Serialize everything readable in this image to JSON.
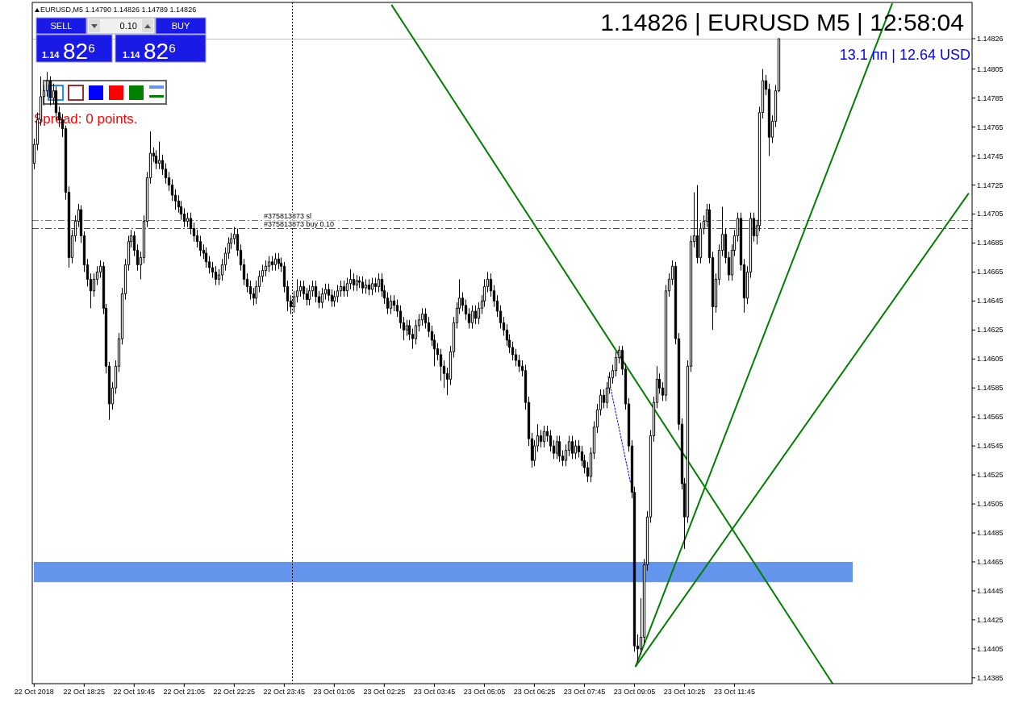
{
  "chart_data": {
    "type": "candlestick",
    "title": "1.14826 | EURUSD M5 | 12:58:04",
    "subtitle": "13.1 пп | 12.64 USD",
    "annotations": [
      "EURUSD,M5  1.14790 1.14826 1.14789 1.14826",
      "Spread: 0 points.",
      "SELL",
      "0.10",
      "BUY",
      "1.14 82$^{6}$",
      "1.14 82$^{6}$"
    ],
    "xlim": [
      "2018-10-22T17:02",
      "2018-10-23T18:05"
    ],
    "xticks": [
      {
        "value": "2018-10-22T17:05",
        "label": "22 Oct 2018"
      },
      {
        "value": "2018-10-22T18:25",
        "label": "22 Oct 18:25"
      },
      {
        "value": "2018-10-22T19:45",
        "label": "22 Oct 19:45"
      },
      {
        "value": "2018-10-22T21:05",
        "label": "22 Oct 21:05"
      },
      {
        "value": "2018-10-22T22:25",
        "label": "22 Oct 22:25"
      },
      {
        "value": "2018-10-22T23:45",
        "label": "22 Oct 23:45"
      },
      {
        "value": "2018-10-23T01:05",
        "label": "23 Oct 01:05"
      },
      {
        "value": "2018-10-23T02:25",
        "label": "23 Oct 02:25"
      },
      {
        "value": "2018-10-23T03:45",
        "label": "23 Oct 03:45"
      },
      {
        "value": "2018-10-23T05:05",
        "label": "23 Oct 05:05"
      },
      {
        "value": "2018-10-23T06:25",
        "label": "23 Oct 06:25"
      },
      {
        "value": "2018-10-23T07:45",
        "label": "23 Oct 07:45"
      },
      {
        "value": "2018-10-23T09:05",
        "label": "23 Oct 09:05"
      },
      {
        "value": "2018-10-23T10:25",
        "label": "23 Oct 10:25"
      },
      {
        "value": "2018-10-23T11:45",
        "label": "23 Oct 11:45"
      }
    ],
    "ylim": [
      1.14381,
      1.14851
    ],
    "yticks": [
      1.14385,
      1.14405,
      1.14425,
      1.14445,
      1.14465,
      1.14485,
      1.14505,
      1.14525,
      1.14545,
      1.14565,
      1.14585,
      1.14605,
      1.14625,
      1.14645,
      1.14665,
      1.14685,
      1.14705,
      1.14725,
      1.14745,
      1.14765,
      1.14785,
      1.14805,
      1.14826
    ],
    "grid": false,
    "ref_lines": [
      {
        "axis": "y",
        "value": 1.14701,
        "label": "#375813873 sl",
        "color": "#ff4500",
        "line_style": "dashed"
      },
      {
        "axis": "y",
        "value": 1.14695,
        "label": "#375813873 buy 0.10",
        "color": "#008000",
        "line_style": "dashed"
      },
      {
        "axis": "y",
        "value": 1.14826,
        "color": "#c0c0c0",
        "line_style": "solid"
      },
      {
        "axis": "x",
        "value": "2018-10-22T23:58",
        "color": "#000000",
        "line_style": "dotted"
      }
    ],
    "bands": [
      {
        "axis": "y",
        "from": 1.14451,
        "to": 1.14465,
        "color": "#6495ed"
      }
    ],
    "series": [
      {
        "x": [
          "2018-10-22T17:05",
          "2018-10-22T17:10",
          "2018-10-22T17:15",
          "2018-10-22T17:20",
          "2018-10-22T17:25",
          "2018-10-22T17:30",
          "2018-10-22T17:35",
          "2018-10-22T17:40",
          "2018-10-22T17:45",
          "2018-10-22T17:50",
          "2018-10-22T17:55",
          "2018-10-22T18:00",
          "2018-10-22T18:05",
          "2018-10-22T18:10",
          "2018-10-22T18:15",
          "2018-10-22T18:20",
          "2018-10-22T18:25",
          "2018-10-22T18:30",
          "2018-10-22T18:35",
          "2018-10-22T18:40",
          "2018-10-22T18:45",
          "2018-10-22T18:50",
          "2018-10-22T18:55",
          "2018-10-22T19:00",
          "2018-10-22T19:05",
          "2018-10-22T19:10",
          "2018-10-22T19:15",
          "2018-10-22T19:20",
          "2018-10-22T19:25",
          "2018-10-22T19:30",
          "2018-10-22T19:35",
          "2018-10-22T19:40",
          "2018-10-22T19:45",
          "2018-10-22T19:50",
          "2018-10-22T19:55",
          "2018-10-22T20:00",
          "2018-10-22T20:05",
          "2018-10-22T20:10",
          "2018-10-22T20:15",
          "2018-10-22T20:20",
          "2018-10-22T20:25",
          "2018-10-22T20:30",
          "2018-10-22T20:35",
          "2018-10-22T20:40",
          "2018-10-22T20:45",
          "2018-10-22T20:50",
          "2018-10-22T20:55",
          "2018-10-22T21:00",
          "2018-10-22T21:05",
          "2018-10-22T21:10",
          "2018-10-22T21:15",
          "2018-10-22T21:20",
          "2018-10-22T21:25",
          "2018-10-22T21:30",
          "2018-10-22T21:35",
          "2018-10-22T21:40",
          "2018-10-22T21:45",
          "2018-10-22T21:50",
          "2018-10-22T21:55",
          "2018-10-22T22:00",
          "2018-10-22T22:05",
          "2018-10-22T22:10",
          "2018-10-22T22:15",
          "2018-10-22T22:20",
          "2018-10-22T22:25",
          "2018-10-22T22:30",
          "2018-10-22T22:35",
          "2018-10-22T22:40",
          "2018-10-22T22:45",
          "2018-10-22T22:50",
          "2018-10-22T22:55",
          "2018-10-22T23:00",
          "2018-10-22T23:05",
          "2018-10-22T23:10",
          "2018-10-22T23:15",
          "2018-10-22T23:20",
          "2018-10-22T23:25",
          "2018-10-22T23:30",
          "2018-10-22T23:35",
          "2018-10-22T23:40",
          "2018-10-22T23:45",
          "2018-10-22T23:50",
          "2018-10-22T23:55",
          "2018-10-23T00:00",
          "2018-10-23T00:05",
          "2018-10-23T00:10",
          "2018-10-23T00:15",
          "2018-10-23T00:20",
          "2018-10-23T00:25",
          "2018-10-23T00:30",
          "2018-10-23T00:35",
          "2018-10-23T00:40",
          "2018-10-23T00:45",
          "2018-10-23T00:50",
          "2018-10-23T00:55",
          "2018-10-23T01:00",
          "2018-10-23T01:05",
          "2018-10-23T01:10",
          "2018-10-23T01:15",
          "2018-10-23T01:20",
          "2018-10-23T01:25",
          "2018-10-23T01:30",
          "2018-10-23T01:35",
          "2018-10-23T01:40",
          "2018-10-23T01:45",
          "2018-10-23T01:50",
          "2018-10-23T01:55",
          "2018-10-23T02:00",
          "2018-10-23T02:05",
          "2018-10-23T02:10",
          "2018-10-23T02:15",
          "2018-10-23T02:20",
          "2018-10-23T02:25",
          "2018-10-23T02:30",
          "2018-10-23T02:35",
          "2018-10-23T02:40",
          "2018-10-23T02:45",
          "2018-10-23T02:50",
          "2018-10-23T02:55",
          "2018-10-23T03:00",
          "2018-10-23T03:05",
          "2018-10-23T03:10",
          "2018-10-23T03:15",
          "2018-10-23T03:20",
          "2018-10-23T03:25",
          "2018-10-23T03:30",
          "2018-10-23T03:35",
          "2018-10-23T03:40",
          "2018-10-23T03:45",
          "2018-10-23T03:50",
          "2018-10-23T03:55",
          "2018-10-23T04:00",
          "2018-10-23T04:05",
          "2018-10-23T04:10",
          "2018-10-23T04:15",
          "2018-10-23T04:20",
          "2018-10-23T04:25",
          "2018-10-23T04:30",
          "2018-10-23T04:35",
          "2018-10-23T04:40",
          "2018-10-23T04:45",
          "2018-10-23T04:50",
          "2018-10-23T04:55",
          "2018-10-23T05:00",
          "2018-10-23T05:05",
          "2018-10-23T05:10",
          "2018-10-23T05:15",
          "2018-10-23T05:20",
          "2018-10-23T05:25",
          "2018-10-23T05:30",
          "2018-10-23T05:35",
          "2018-10-23T05:40",
          "2018-10-23T05:45",
          "2018-10-23T05:50",
          "2018-10-23T05:55",
          "2018-10-23T06:00",
          "2018-10-23T06:05",
          "2018-10-23T06:10",
          "2018-10-23T06:15",
          "2018-10-23T06:20",
          "2018-10-23T06:25",
          "2018-10-23T06:30",
          "2018-10-23T06:35",
          "2018-10-23T06:40",
          "2018-10-23T06:45",
          "2018-10-23T06:50",
          "2018-10-23T06:55",
          "2018-10-23T07:00",
          "2018-10-23T07:05",
          "2018-10-23T07:10",
          "2018-10-23T07:15",
          "2018-10-23T07:20",
          "2018-10-23T07:25",
          "2018-10-23T07:30",
          "2018-10-23T07:35",
          "2018-10-23T07:40",
          "2018-10-23T07:45",
          "2018-10-23T07:50",
          "2018-10-23T07:55",
          "2018-10-23T08:00",
          "2018-10-23T08:05",
          "2018-10-23T08:10",
          "2018-10-23T08:15",
          "2018-10-23T08:20",
          "2018-10-23T08:25",
          "2018-10-23T08:30",
          "2018-10-23T08:35",
          "2018-10-23T08:40",
          "2018-10-23T08:45",
          "2018-10-23T08:50",
          "2018-10-23T08:55",
          "2018-10-23T09:00",
          "2018-10-23T09:05",
          "2018-10-23T09:10",
          "2018-10-23T09:15",
          "2018-10-23T09:20",
          "2018-10-23T09:25",
          "2018-10-23T09:30",
          "2018-10-23T09:35",
          "2018-10-23T09:40",
          "2018-10-23T09:45",
          "2018-10-23T09:50",
          "2018-10-23T09:55",
          "2018-10-23T10:00",
          "2018-10-23T10:05",
          "2018-10-23T10:10",
          "2018-10-23T10:15",
          "2018-10-23T10:20",
          "2018-10-23T10:25",
          "2018-10-23T10:30",
          "2018-10-23T10:35",
          "2018-10-23T10:40",
          "2018-10-23T10:45",
          "2018-10-23T10:50",
          "2018-10-23T10:55",
          "2018-10-23T11:00",
          "2018-10-23T11:05",
          "2018-10-23T11:10",
          "2018-10-23T11:15",
          "2018-10-23T11:20",
          "2018-10-23T11:25",
          "2018-10-23T11:30",
          "2018-10-23T11:35",
          "2018-10-23T11:40",
          "2018-10-23T11:45",
          "2018-10-23T11:50",
          "2018-10-23T11:55",
          "2018-10-23T12:00",
          "2018-10-23T12:05",
          "2018-10-23T12:10",
          "2018-10-23T12:15",
          "2018-10-23T12:20",
          "2018-10-23T12:25",
          "2018-10-23T12:30",
          "2018-10-23T12:35",
          "2018-10-23T12:40",
          "2018-10-23T12:45",
          "2018-10-23T12:50",
          "2018-10-23T12:55"
        ],
        "ohlc": [
          [
            1.1474,
            1.14757,
            1.14736,
            1.14753
          ],
          [
            1.14753,
            1.14775,
            1.14749,
            1.1477
          ],
          [
            1.1477,
            1.148,
            1.14766,
            1.14786
          ],
          [
            1.14786,
            1.14794,
            1.1478,
            1.1479
          ],
          [
            1.1479,
            1.14803,
            1.14786,
            1.14797
          ],
          [
            1.14797,
            1.148,
            1.1478,
            1.14785
          ],
          [
            1.14785,
            1.14795,
            1.14781,
            1.1479
          ],
          [
            1.1479,
            1.14793,
            1.1477,
            1.14775
          ],
          [
            1.14775,
            1.14779,
            1.14765,
            1.1477
          ],
          [
            1.1477,
            1.14774,
            1.14758,
            1.14764
          ],
          [
            1.14764,
            1.14766,
            1.14715,
            1.1472
          ],
          [
            1.1472,
            1.14724,
            1.14668,
            1.14675
          ],
          [
            1.14675,
            1.14694,
            1.14671,
            1.1469
          ],
          [
            1.1469,
            1.14704,
            1.14686,
            1.147
          ],
          [
            1.147,
            1.14712,
            1.14696,
            1.14708
          ],
          [
            1.14708,
            1.14711,
            1.14685,
            1.1469
          ],
          [
            1.1469,
            1.14693,
            1.14665,
            1.1467
          ],
          [
            1.1467,
            1.14674,
            1.14655,
            1.1466
          ],
          [
            1.1466,
            1.14664,
            1.1464,
            1.14652
          ],
          [
            1.14652,
            1.14664,
            1.14648,
            1.1466
          ],
          [
            1.1466,
            1.14669,
            1.14656,
            1.14665
          ],
          [
            1.14665,
            1.14673,
            1.14661,
            1.14669
          ],
          [
            1.14669,
            1.14672,
            1.14636,
            1.1464
          ],
          [
            1.1464,
            1.14643,
            1.14595,
            1.146
          ],
          [
            1.146,
            1.14603,
            1.14563,
            1.14574
          ],
          [
            1.14574,
            1.14589,
            1.1457,
            1.14585
          ],
          [
            1.14585,
            1.14604,
            1.14581,
            1.146
          ],
          [
            1.146,
            1.14623,
            1.14596,
            1.14619
          ],
          [
            1.14619,
            1.14654,
            1.14615,
            1.1465
          ],
          [
            1.1465,
            1.14674,
            1.14646,
            1.1467
          ],
          [
            1.1467,
            1.1469,
            1.14666,
            1.14686
          ],
          [
            1.14686,
            1.14694,
            1.14682,
            1.1469
          ],
          [
            1.1469,
            1.14693,
            1.14676,
            1.1468
          ],
          [
            1.1468,
            1.14684,
            1.14666,
            1.1467
          ],
          [
            1.1467,
            1.14679,
            1.1466,
            1.14675
          ],
          [
            1.14675,
            1.14704,
            1.14671,
            1.147
          ],
          [
            1.147,
            1.14734,
            1.14696,
            1.1473
          ],
          [
            1.1473,
            1.14762,
            1.14726,
            1.14747
          ],
          [
            1.14747,
            1.14751,
            1.14741,
            1.14745
          ],
          [
            1.14745,
            1.14749,
            1.14736,
            1.1474
          ],
          [
            1.1474,
            1.14755,
            1.14736,
            1.14742
          ],
          [
            1.14742,
            1.14746,
            1.14732,
            1.14736
          ],
          [
            1.14736,
            1.1474,
            1.14726,
            1.1473
          ],
          [
            1.1473,
            1.14734,
            1.14721,
            1.14725
          ],
          [
            1.14725,
            1.14729,
            1.14714,
            1.14718
          ],
          [
            1.14718,
            1.14722,
            1.14708,
            1.14714
          ],
          [
            1.14714,
            1.14718,
            1.14706,
            1.1471
          ],
          [
            1.1471,
            1.14714,
            1.14701,
            1.14705
          ],
          [
            1.14705,
            1.14709,
            1.14696,
            1.147
          ],
          [
            1.147,
            1.14706,
            1.14696,
            1.14702
          ],
          [
            1.14702,
            1.14706,
            1.14691,
            1.14695
          ],
          [
            1.14695,
            1.14699,
            1.14686,
            1.1469
          ],
          [
            1.1469,
            1.14694,
            1.14682,
            1.14686
          ],
          [
            1.14686,
            1.1469,
            1.14676,
            1.1468
          ],
          [
            1.1468,
            1.14684,
            1.14674,
            1.14678
          ],
          [
            1.14678,
            1.14682,
            1.14668,
            1.14672
          ],
          [
            1.14672,
            1.14676,
            1.14664,
            1.14668
          ],
          [
            1.14668,
            1.14672,
            1.14661,
            1.14665
          ],
          [
            1.14665,
            1.14669,
            1.14656,
            1.1466
          ],
          [
            1.1466,
            1.14667,
            1.14656,
            1.14663
          ],
          [
            1.14663,
            1.14674,
            1.14659,
            1.1467
          ],
          [
            1.1467,
            1.14682,
            1.14666,
            1.14678
          ],
          [
            1.14678,
            1.14689,
            1.14674,
            1.14685
          ],
          [
            1.14685,
            1.14692,
            1.14681,
            1.14688
          ],
          [
            1.14688,
            1.14696,
            1.14684,
            1.14691
          ],
          [
            1.14691,
            1.14695,
            1.14676,
            1.1468
          ],
          [
            1.1468,
            1.14684,
            1.14666,
            1.1467
          ],
          [
            1.1467,
            1.14674,
            1.14656,
            1.1466
          ],
          [
            1.1466,
            1.14664,
            1.14651,
            1.14655
          ],
          [
            1.14655,
            1.14659,
            1.14646,
            1.1465
          ],
          [
            1.1465,
            1.14654,
            1.14642,
            1.14647
          ],
          [
            1.14647,
            1.14659,
            1.14643,
            1.14655
          ],
          [
            1.14655,
            1.14666,
            1.14651,
            1.14662
          ],
          [
            1.14662,
            1.1467,
            1.14658,
            1.14666
          ],
          [
            1.14666,
            1.14673,
            1.14662,
            1.14669
          ],
          [
            1.14669,
            1.14676,
            1.14665,
            1.14672
          ],
          [
            1.14672,
            1.14676,
            1.14666,
            1.1467
          ],
          [
            1.1467,
            1.14678,
            1.14666,
            1.14674
          ],
          [
            1.14674,
            1.14678,
            1.14667,
            1.14671
          ],
          [
            1.14671,
            1.14675,
            1.14665,
            1.14669
          ],
          [
            1.14669,
            1.14672,
            1.14651,
            1.14655
          ],
          [
            1.14655,
            1.14659,
            1.14638,
            1.14645
          ],
          [
            1.14645,
            1.14649,
            1.14636,
            1.14641
          ],
          [
            1.14641,
            1.14652,
            1.14637,
            1.14648
          ],
          [
            1.14648,
            1.1466,
            1.14644,
            1.14652
          ],
          [
            1.14652,
            1.14659,
            1.14648,
            1.14655
          ],
          [
            1.14655,
            1.14659,
            1.14646,
            1.1465
          ],
          [
            1.1465,
            1.14654,
            1.14642,
            1.14646
          ],
          [
            1.14646,
            1.14656,
            1.14642,
            1.14652
          ],
          [
            1.14652,
            1.14659,
            1.14648,
            1.14655
          ],
          [
            1.14655,
            1.14659,
            1.14644,
            1.14648
          ],
          [
            1.14648,
            1.14652,
            1.1464,
            1.14644
          ],
          [
            1.14644,
            1.14654,
            1.1464,
            1.1465
          ],
          [
            1.1465,
            1.14657,
            1.14646,
            1.14653
          ],
          [
            1.14653,
            1.14657,
            1.14645,
            1.14649
          ],
          [
            1.14649,
            1.14653,
            1.14641,
            1.14645
          ],
          [
            1.14645,
            1.14652,
            1.14641,
            1.14648
          ],
          [
            1.14648,
            1.14656,
            1.14644,
            1.14652
          ],
          [
            1.14652,
            1.14659,
            1.14648,
            1.14655
          ],
          [
            1.14655,
            1.14659,
            1.14648,
            1.14652
          ],
          [
            1.14652,
            1.14661,
            1.14648,
            1.14657
          ],
          [
            1.14657,
            1.14667,
            1.14653,
            1.1466
          ],
          [
            1.1466,
            1.14664,
            1.14652,
            1.14656
          ],
          [
            1.14656,
            1.14663,
            1.14652,
            1.14659
          ],
          [
            1.14659,
            1.14662,
            1.14654,
            1.14658
          ],
          [
            1.14658,
            1.14662,
            1.1465,
            1.14654
          ],
          [
            1.14654,
            1.1466,
            1.1465,
            1.14656
          ],
          [
            1.14656,
            1.1466,
            1.14649,
            1.14653
          ],
          [
            1.14653,
            1.14661,
            1.14649,
            1.14657
          ],
          [
            1.14657,
            1.14661,
            1.14651,
            1.14655
          ],
          [
            1.14655,
            1.14664,
            1.14651,
            1.1466
          ],
          [
            1.1466,
            1.14664,
            1.14648,
            1.14652
          ],
          [
            1.14652,
            1.14656,
            1.14643,
            1.14647
          ],
          [
            1.14647,
            1.14651,
            1.14636,
            1.1464
          ],
          [
            1.1464,
            1.14649,
            1.14636,
            1.14645
          ],
          [
            1.14645,
            1.14649,
            1.14638,
            1.14642
          ],
          [
            1.14642,
            1.14646,
            1.14634,
            1.14638
          ],
          [
            1.14638,
            1.14642,
            1.14626,
            1.1463
          ],
          [
            1.1463,
            1.14634,
            1.14618,
            1.14625
          ],
          [
            1.14625,
            1.14632,
            1.14621,
            1.14628
          ],
          [
            1.14628,
            1.14632,
            1.14618,
            1.14622
          ],
          [
            1.14622,
            1.14626,
            1.14612,
            1.14619
          ],
          [
            1.14619,
            1.14632,
            1.14615,
            1.14628
          ],
          [
            1.14628,
            1.14636,
            1.14624,
            1.14632
          ],
          [
            1.14632,
            1.1464,
            1.14628,
            1.14636
          ],
          [
            1.14636,
            1.1464,
            1.14626,
            1.1463
          ],
          [
            1.1463,
            1.14634,
            1.1462,
            1.14624
          ],
          [
            1.14624,
            1.14628,
            1.14614,
            1.14618
          ],
          [
            1.14618,
            1.14622,
            1.146,
            1.14612
          ],
          [
            1.14612,
            1.14616,
            1.14604,
            1.14608
          ],
          [
            1.14608,
            1.14612,
            1.1459,
            1.146
          ],
          [
            1.146,
            1.14604,
            1.14585,
            1.14595
          ],
          [
            1.14595,
            1.14599,
            1.1458,
            1.14591
          ],
          [
            1.14591,
            1.14614,
            1.14587,
            1.1461
          ],
          [
            1.1461,
            1.14634,
            1.14606,
            1.1463
          ],
          [
            1.1463,
            1.14644,
            1.14626,
            1.1464
          ],
          [
            1.1464,
            1.1466,
            1.14636,
            1.14647
          ],
          [
            1.14647,
            1.14651,
            1.14638,
            1.14642
          ],
          [
            1.14642,
            1.14646,
            1.14632,
            1.14636
          ],
          [
            1.14636,
            1.1464,
            1.14626,
            1.1463
          ],
          [
            1.1463,
            1.14642,
            1.14626,
            1.14638
          ],
          [
            1.14638,
            1.14642,
            1.14629,
            1.14633
          ],
          [
            1.14633,
            1.14644,
            1.14629,
            1.1464
          ],
          [
            1.1464,
            1.14649,
            1.14636,
            1.14645
          ],
          [
            1.14645,
            1.1466,
            1.14641,
            1.14655
          ],
          [
            1.14655,
            1.14665,
            1.14651,
            1.1466
          ],
          [
            1.1466,
            1.14664,
            1.14648,
            1.14652
          ],
          [
            1.14652,
            1.14656,
            1.14641,
            1.14645
          ],
          [
            1.14645,
            1.14649,
            1.14634,
            1.14638
          ],
          [
            1.14638,
            1.14642,
            1.14626,
            1.1463
          ],
          [
            1.1463,
            1.14634,
            1.14621,
            1.14625
          ],
          [
            1.14625,
            1.14629,
            1.14614,
            1.14618
          ],
          [
            1.14618,
            1.14622,
            1.14609,
            1.14613
          ],
          [
            1.14613,
            1.14617,
            1.14604,
            1.14608
          ],
          [
            1.14608,
            1.14612,
            1.146,
            1.14604
          ],
          [
            1.14604,
            1.14608,
            1.14596,
            1.146
          ],
          [
            1.146,
            1.14604,
            1.14593,
            1.14597
          ],
          [
            1.14597,
            1.14601,
            1.1457,
            1.14575
          ],
          [
            1.14575,
            1.14579,
            1.14545,
            1.1455
          ],
          [
            1.1455,
            1.14554,
            1.1453,
            1.14535
          ],
          [
            1.14535,
            1.14549,
            1.14531,
            1.14545
          ],
          [
            1.14545,
            1.1456,
            1.14541,
            1.14552
          ],
          [
            1.14552,
            1.14556,
            1.14544,
            1.14548
          ],
          [
            1.14548,
            1.14559,
            1.14544,
            1.14555
          ],
          [
            1.14555,
            1.14559,
            1.14548,
            1.14552
          ],
          [
            1.14552,
            1.14556,
            1.14541,
            1.14545
          ],
          [
            1.14545,
            1.14549,
            1.14536,
            1.1454
          ],
          [
            1.1454,
            1.14552,
            1.14536,
            1.14548
          ],
          [
            1.14548,
            1.14552,
            1.14534,
            1.14538
          ],
          [
            1.14538,
            1.14542,
            1.14531,
            1.14535
          ],
          [
            1.14535,
            1.14546,
            1.14531,
            1.14542
          ],
          [
            1.14542,
            1.14552,
            1.14538,
            1.14548
          ],
          [
            1.14548,
            1.14552,
            1.14536,
            1.1454
          ],
          [
            1.1454,
            1.14549,
            1.14536,
            1.14545
          ],
          [
            1.14545,
            1.14549,
            1.14537,
            1.14541
          ],
          [
            1.14541,
            1.14545,
            1.14531,
            1.14535
          ],
          [
            1.14535,
            1.14539,
            1.14526,
            1.1453
          ],
          [
            1.1453,
            1.14534,
            1.1452,
            1.14524
          ],
          [
            1.14524,
            1.14544,
            1.1452,
            1.1454
          ],
          [
            1.1454,
            1.14562,
            1.14536,
            1.14558
          ],
          [
            1.14558,
            1.14574,
            1.14554,
            1.1457
          ],
          [
            1.1457,
            1.14584,
            1.14566,
            1.1458
          ],
          [
            1.1458,
            1.14584,
            1.14571,
            1.14575
          ],
          [
            1.14575,
            1.14589,
            1.14571,
            1.14585
          ],
          [
            1.14585,
            1.14596,
            1.14581,
            1.14592
          ],
          [
            1.14592,
            1.14601,
            1.14588,
            1.14597
          ],
          [
            1.14597,
            1.1461,
            1.14593,
            1.14606
          ],
          [
            1.14606,
            1.14614,
            1.14602,
            1.14611
          ],
          [
            1.14611,
            1.14614,
            1.14594,
            1.14598
          ],
          [
            1.14598,
            1.14602,
            1.1457,
            1.14574
          ],
          [
            1.14574,
            1.14578,
            1.14541,
            1.14545
          ],
          [
            1.14545,
            1.14549,
            1.14509,
            1.14513
          ],
          [
            1.14513,
            1.14517,
            1.14403,
            1.14407
          ],
          [
            1.14407,
            1.14415,
            1.14396,
            1.14405
          ],
          [
            1.14405,
            1.1444,
            1.14401,
            1.14413
          ],
          [
            1.14413,
            1.14467,
            1.14409,
            1.14463
          ],
          [
            1.14463,
            1.145,
            1.14459,
            1.14496
          ],
          [
            1.14496,
            1.14556,
            1.14492,
            1.14552
          ],
          [
            1.14552,
            1.14579,
            1.14548,
            1.14575
          ],
          [
            1.14575,
            1.146,
            1.14571,
            1.14591
          ],
          [
            1.14591,
            1.14595,
            1.14581,
            1.14585
          ],
          [
            1.14585,
            1.14589,
            1.14576,
            1.1458
          ],
          [
            1.1458,
            1.14656,
            1.14576,
            1.14652
          ],
          [
            1.14652,
            1.14664,
            1.14648,
            1.1466
          ],
          [
            1.1466,
            1.14673,
            1.14656,
            1.14669
          ],
          [
            1.14669,
            1.14672,
            1.14615,
            1.14619
          ],
          [
            1.14619,
            1.14623,
            1.14556,
            1.1456
          ],
          [
            1.1456,
            1.14564,
            1.14515,
            1.14519
          ],
          [
            1.14519,
            1.14523,
            1.14474,
            1.14496
          ],
          [
            1.14496,
            1.14604,
            1.14492,
            1.146
          ],
          [
            1.146,
            1.1469,
            1.14596,
            1.14686
          ],
          [
            1.14686,
            1.1472,
            1.14682,
            1.1469
          ],
          [
            1.1469,
            1.14725,
            1.14671,
            1.14675
          ],
          [
            1.14675,
            1.14699,
            1.14671,
            1.14695
          ],
          [
            1.14695,
            1.14704,
            1.14691,
            1.147
          ],
          [
            1.147,
            1.14712,
            1.14696,
            1.14708
          ],
          [
            1.14708,
            1.14712,
            1.14671,
            1.14675
          ],
          [
            1.14675,
            1.14679,
            1.14625,
            1.14641
          ],
          [
            1.14641,
            1.14664,
            1.14637,
            1.1466
          ],
          [
            1.1466,
            1.14684,
            1.14656,
            1.1468
          ],
          [
            1.1468,
            1.1471,
            1.14676,
            1.14691
          ],
          [
            1.14691,
            1.14695,
            1.14671,
            1.14675
          ],
          [
            1.14675,
            1.14679,
            1.14659,
            1.14663
          ],
          [
            1.14663,
            1.14684,
            1.14659,
            1.1468
          ],
          [
            1.1468,
            1.14694,
            1.14676,
            1.1469
          ],
          [
            1.1469,
            1.14706,
            1.14686,
            1.14702
          ],
          [
            1.14702,
            1.14706,
            1.14666,
            1.1467
          ],
          [
            1.1467,
            1.14674,
            1.14637,
            1.14647
          ],
          [
            1.14647,
            1.14669,
            1.14643,
            1.14665
          ],
          [
            1.14665,
            1.14706,
            1.14661,
            1.14702
          ],
          [
            1.14702,
            1.14706,
            1.14686,
            1.1469
          ],
          [
            1.1469,
            1.14701,
            1.14684,
            1.14697
          ],
          [
            1.14697,
            1.14779,
            1.14693,
            1.14775
          ],
          [
            1.14775,
            1.14805,
            1.14771,
            1.14797
          ],
          [
            1.14797,
            1.14801,
            1.14787,
            1.14791
          ],
          [
            1.14791,
            1.14795,
            1.14745,
            1.14758
          ],
          [
            1.14758,
            1.14773,
            1.14754,
            1.14769
          ],
          [
            1.14769,
            1.14794,
            1.14765,
            1.1479
          ],
          [
            1.1479,
            1.14826,
            1.14789,
            1.14826
          ]
        ]
      },
      {
        "type": "line",
        "color": "#008000",
        "line_style": "solid",
        "x": [
          "2018-10-23T02:37",
          "2018-10-23T14:22"
        ],
        "values": [
          1.14849,
          1.14381
        ]
      },
      {
        "type": "line",
        "color": "#008000",
        "line_style": "solid",
        "x": [
          "2018-10-23T09:07",
          "2018-10-23T15:57"
        ],
        "values": [
          1.14393,
          1.1485
        ]
      },
      {
        "type": "line",
        "color": "#008000",
        "line_style": "solid",
        "x": [
          "2018-10-23T09:07",
          "2018-10-23T17:59"
        ],
        "values": [
          1.14393,
          1.14719
        ]
      },
      {
        "type": "line",
        "color": "#0000ff",
        "line_style": "dotted",
        "x": [
          "2018-10-23T08:23",
          "2018-10-23T08:59"
        ],
        "values": [
          1.14593,
          1.14519
        ]
      }
    ]
  }
}
